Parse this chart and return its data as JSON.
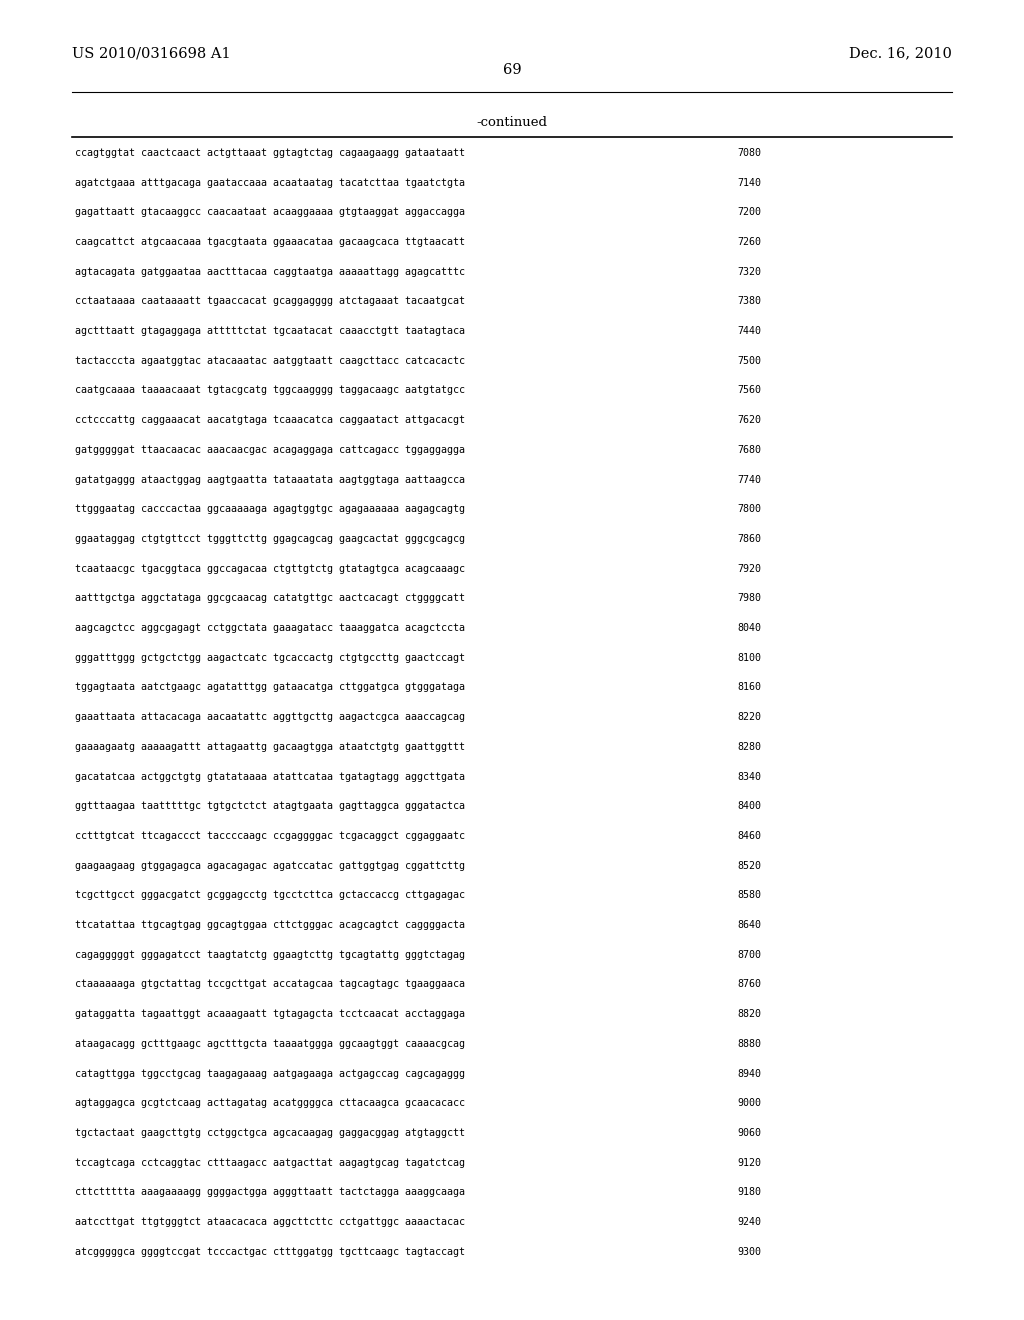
{
  "header_left": "US 2010/0316698 A1",
  "header_right": "Dec. 16, 2010",
  "page_number": "69",
  "continued_label": "-continued",
  "background_color": "#ffffff",
  "text_color": "#000000",
  "sequences": [
    {
      "seq": "ccagtggtat caactcaact actgttaaat ggtagtctag cagaagaagg gataataatt",
      "num": "7080"
    },
    {
      "seq": "agatctgaaa atttgacaga gaataccaaa acaataatag tacatcttaa tgaatctgta",
      "num": "7140"
    },
    {
      "seq": "gagattaatt gtacaaggcc caacaataat acaaggaaaa gtgtaaggat aggaccagga",
      "num": "7200"
    },
    {
      "seq": "caagcattct atgcaacaaa tgacgtaata ggaaacataa gacaagcaca ttgtaacatt",
      "num": "7260"
    },
    {
      "seq": "agtacagata gatggaataa aactttacaa caggtaatga aaaaattagg agagcatttc",
      "num": "7320"
    },
    {
      "seq": "cctaataaaa caataaaatt tgaaccacat gcaggagggg atctagaaat tacaatgcat",
      "num": "7380"
    },
    {
      "seq": "agctttaatt gtagaggaga atttttctat tgcaatacat caaacctgtt taatagtaca",
      "num": "7440"
    },
    {
      "seq": "tactacccta agaatggtac atacaaatac aatggtaatt caagcttacc catcacactc",
      "num": "7500"
    },
    {
      "seq": "caatgcaaaa taaaacaaat tgtacgcatg tggcaagggg taggacaagc aatgtatgcc",
      "num": "7560"
    },
    {
      "seq": "cctcccattg caggaaacat aacatgtaga tcaaacatca caggaatact attgacacgt",
      "num": "7620"
    },
    {
      "seq": "gatgggggat ttaacaacac aaacaacgac acagaggaga cattcagacc tggaggagga",
      "num": "7680"
    },
    {
      "seq": "gatatgaggg ataactggag aagtgaatta tataaatata aagtggtaga aattaagcca",
      "num": "7740"
    },
    {
      "seq": "ttgggaatag cacccactaa ggcaaaaaga agagtggtgc agagaaaaaa aagagcagtg",
      "num": "7800"
    },
    {
      "seq": "ggaataggag ctgtgttcct tgggttcttg ggagcagcag gaagcactat gggcgcagcg",
      "num": "7860"
    },
    {
      "seq": "tcaataacgc tgacggtaca ggccagacaa ctgttgtctg gtatagtgca acagcaaagc",
      "num": "7920"
    },
    {
      "seq": "aatttgctga aggctataga ggcgcaacag catatgttgc aactcacagt ctggggcatt",
      "num": "7980"
    },
    {
      "seq": "aagcagctcc aggcgagagt cctggctata gaaagatacс taaaggatca acagctccta",
      "num": "8040"
    },
    {
      "seq": "gggatttggg gctgctctgg aagactcatc tgcaccactg ctgtgccttg gaactccagt",
      "num": "8100"
    },
    {
      "seq": "tggagtaata aatctgaagc agatatttgg gataacatga cttggatgca gtgggataga",
      "num": "8160"
    },
    {
      "seq": "gaaattaata attacacaga aacaatattc aggttgcttg aagactcgca aaaccagcag",
      "num": "8220"
    },
    {
      "seq": "gaaaagaatg aaaaagattt attagaattg gacaagtgga ataatctgtg gaattggttt",
      "num": "8280"
    },
    {
      "seq": "gacatatcaa actggctgtg gtatataaaa atattcataa tgatagtagg aggcttgata",
      "num": "8340"
    },
    {
      "seq": "ggtttaagaa taatttttgc tgtgctctct atagtgaata gagttaggca gggatactca",
      "num": "8400"
    },
    {
      "seq": "cctttgtcat ttcagaccct taccccaagc ccgaggggac tcgacaggct cggaggaatc",
      "num": "8460"
    },
    {
      "seq": "gaagaagaag gtggagagca agacagagac agatccatac gattggtgag cggattcttg",
      "num": "8520"
    },
    {
      "seq": "tcgcttgcct gggacgatct gcggagcctg tgcctcttca gctaccaccg cttgagagac",
      "num": "8580"
    },
    {
      "seq": "ttcatattaa ttgcagtgag ggcagtggaa cttctgggac acagcagtct caggggacta",
      "num": "8640"
    },
    {
      "seq": "cagagggggt gggagatcct taagtatctg ggaagtcttg tgcagtattg gggtctagag",
      "num": "8700"
    },
    {
      "seq": "ctaaaaaaga gtgctattag tccgcttgat accatagcaa tagcagtagc tgaaggaaca",
      "num": "8760"
    },
    {
      "seq": "gataggatta tagaattggt acaaagaatt tgtagagcta tcctcaacat acctaggaga",
      "num": "8820"
    },
    {
      "seq": "ataagacagg gctttgaagc agctttgcta taaaatggga ggcaagtggt caaaacgcag",
      "num": "8880"
    },
    {
      "seq": "catagttgga tggcctgcag taagagaaag aatgagaaga actgagccag cagcagaggg",
      "num": "8940"
    },
    {
      "seq": "agtaggagca gcgtctcaag acttagatag acatggggca cttacaagca gcaacacacc",
      "num": "9000"
    },
    {
      "seq": "tgctactaat gaagcttgtg cctggctgca agcacaagag gaggacggag atgtaggctt",
      "num": "9060"
    },
    {
      "seq": "tccagtcaga cctcaggtac ctttaagacc aatgacttat aagagtgcag tagatctcag",
      "num": "9120"
    },
    {
      "seq": "cttcttttta aaagaaaagg ggggactgga agggttaatt tactctagga aaaggcaaga",
      "num": "9180"
    },
    {
      "seq": "aatccttgat ttgtgggtct ataacacaca aggcttcttc cctgattggc aaaactacac",
      "num": "9240"
    },
    {
      "seq": "atcgggggca ggggtccgat tcccactgac ctttggatgg tgcttcaagc tagtaccagt",
      "num": "9300"
    }
  ]
}
